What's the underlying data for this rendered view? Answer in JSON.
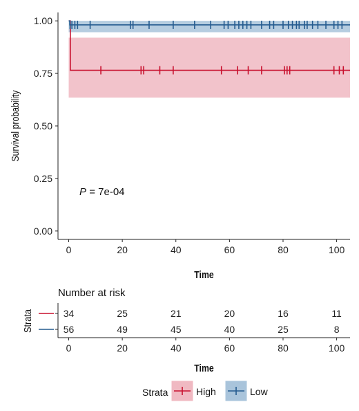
{
  "chart_data": {
    "type": "line",
    "subtype": "kaplan-meier",
    "xlabel": "Time",
    "ylabel": "Survival probability",
    "xlim": [
      -4,
      105
    ],
    "ylim": [
      -0.04,
      1.04
    ],
    "x_ticks": [
      0,
      20,
      40,
      60,
      80,
      100
    ],
    "y_ticks": [
      0.0,
      0.25,
      0.5,
      0.75,
      1.0
    ],
    "y_tick_labels": [
      "0.00",
      "0.25",
      "0.50",
      "0.75",
      "1.00"
    ],
    "grid": false,
    "annotation": {
      "italic": "P",
      "text": " = 7e-04",
      "x": 4,
      "y": 0.17
    },
    "series": [
      {
        "name": "High",
        "color": "#c8102e",
        "fill": "#f0b9c2",
        "steps": [
          [
            0,
            1.0
          ],
          [
            0.6,
            0.765
          ],
          [
            105,
            0.765
          ]
        ],
        "ci_lower": 0.635,
        "ci_upper": 0.92,
        "censor_y": 0.765,
        "censor_times": [
          12,
          27,
          28,
          34,
          39,
          57,
          63,
          67,
          72,
          80.5,
          81.5,
          82.5,
          99,
          101,
          102.5
        ]
      },
      {
        "name": "Low",
        "color": "#245b8f",
        "fill": "#a9c4db",
        "steps": [
          [
            0,
            1.0
          ],
          [
            0.4,
            0.981
          ],
          [
            105,
            0.981
          ]
        ],
        "ci_lower": 0.946,
        "ci_upper": 1.0,
        "censor_y": 0.981,
        "censor_times": [
          0.5,
          1.2,
          2.3,
          3.3,
          8,
          23,
          24,
          30,
          39,
          47,
          53,
          58,
          59.5,
          62,
          63.5,
          65,
          66.5,
          68,
          72,
          75,
          76.5,
          80,
          82,
          83.5,
          85,
          86,
          88,
          89,
          91,
          93,
          96,
          99,
          100.5,
          102
        ]
      }
    ],
    "risk_table": {
      "title": "Number at risk",
      "strata_label": "Strata",
      "xlabel": "Time",
      "times": [
        0,
        20,
        40,
        60,
        80,
        100
      ],
      "rows": [
        {
          "name": "High",
          "color": "#c8102e",
          "values": [
            "34",
            "25",
            "21",
            "20",
            "16",
            "11"
          ]
        },
        {
          "name": "Low",
          "color": "#245b8f",
          "values": [
            "56",
            "49",
            "45",
            "40",
            "25",
            "8"
          ]
        }
      ]
    },
    "legend": {
      "title": "Strata",
      "position": "bottom",
      "items": [
        {
          "label": "High",
          "color": "#c8102e",
          "fill": "#f0b9c2"
        },
        {
          "label": "Low",
          "color": "#245b8f",
          "fill": "#a9c4db"
        }
      ]
    }
  }
}
